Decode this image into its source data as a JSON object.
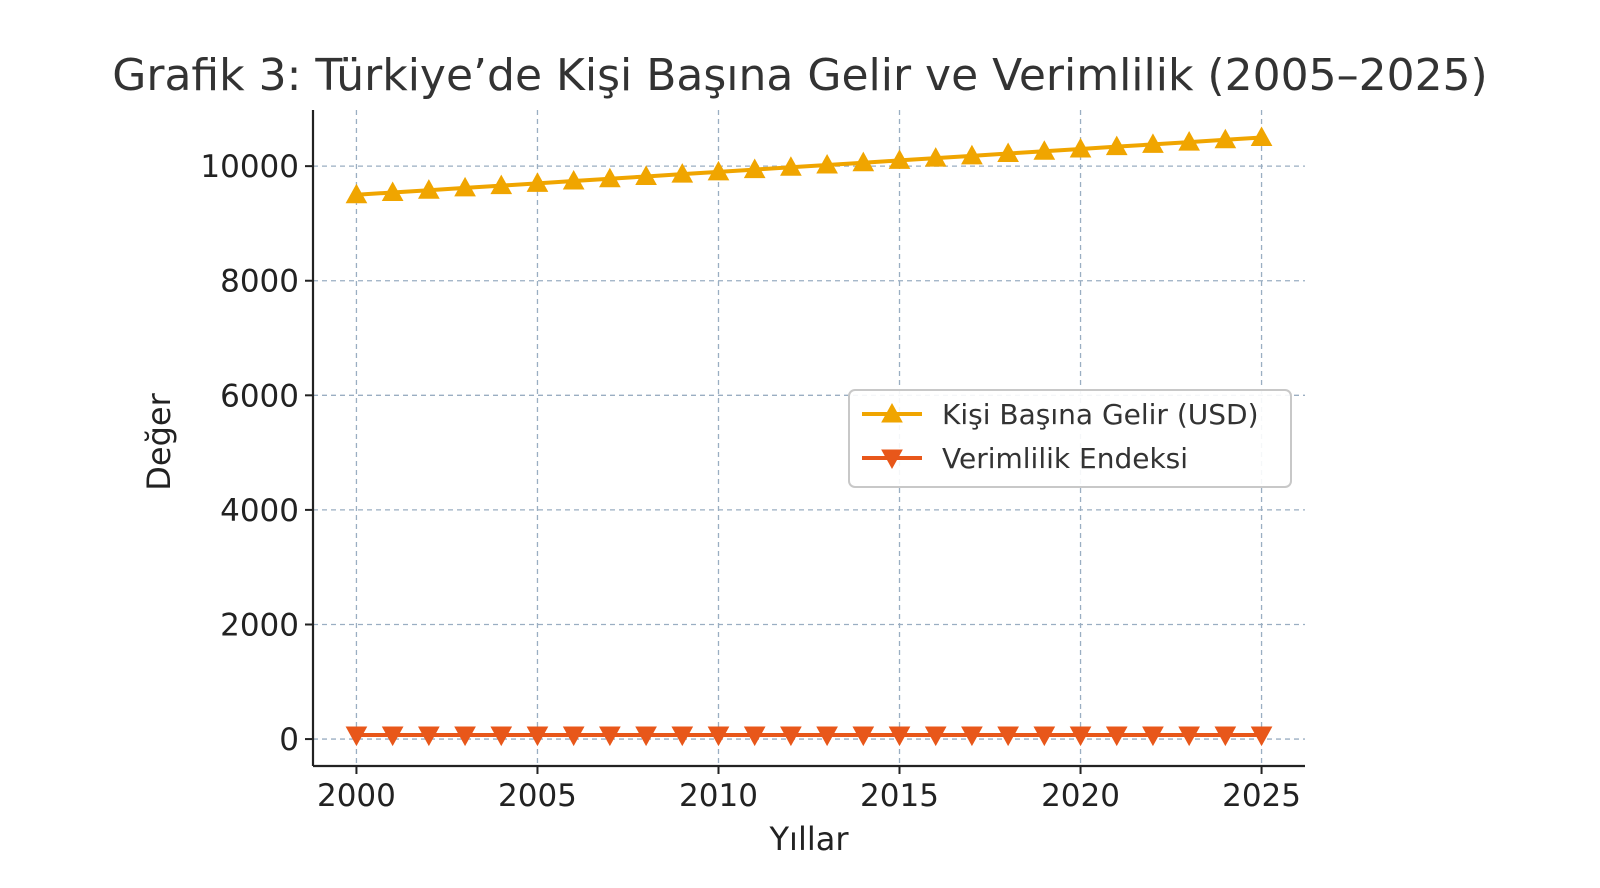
{
  "chart_data": {
    "type": "line",
    "title": "Grafik 3: Türkiye’de Kişi Başına Gelir ve Verimlilik (2005–2025)",
    "xlabel": "Yıllar",
    "ylabel": "Değer",
    "xlim": [
      1998.8,
      2026.2
    ],
    "ylim": [
      -470,
      10980
    ],
    "x_ticks": [
      2000,
      2005,
      2010,
      2015,
      2020,
      2025
    ],
    "y_ticks": [
      0,
      2000,
      4000,
      6000,
      8000,
      10000
    ],
    "grid": true,
    "legend_position": "center-right",
    "x": [
      2000,
      2001,
      2002,
      2003,
      2004,
      2005,
      2006,
      2007,
      2008,
      2009,
      2010,
      2011,
      2012,
      2013,
      2014,
      2015,
      2016,
      2017,
      2018,
      2019,
      2020,
      2021,
      2022,
      2023,
      2024,
      2025
    ],
    "series": [
      {
        "name": "Kişi Başına Gelir (USD)",
        "color": "#f0a500",
        "marker": "triangle-up",
        "values": [
          9500,
          9540,
          9580,
          9620,
          9660,
          9700,
          9740,
          9780,
          9820,
          9860,
          9900,
          9940,
          9980,
          10020,
          10060,
          10100,
          10140,
          10180,
          10220,
          10260,
          10300,
          10340,
          10380,
          10420,
          10460,
          10500
        ]
      },
      {
        "name": "Verimlilik Endeksi",
        "color": "#e8571a",
        "marker": "triangle-down",
        "values": [
          70,
          70,
          70,
          70,
          70,
          70,
          70,
          70,
          70,
          70,
          70,
          70,
          70,
          70,
          70,
          70,
          70,
          70,
          70,
          70,
          70,
          70,
          70,
          70,
          70,
          70
        ]
      }
    ]
  }
}
